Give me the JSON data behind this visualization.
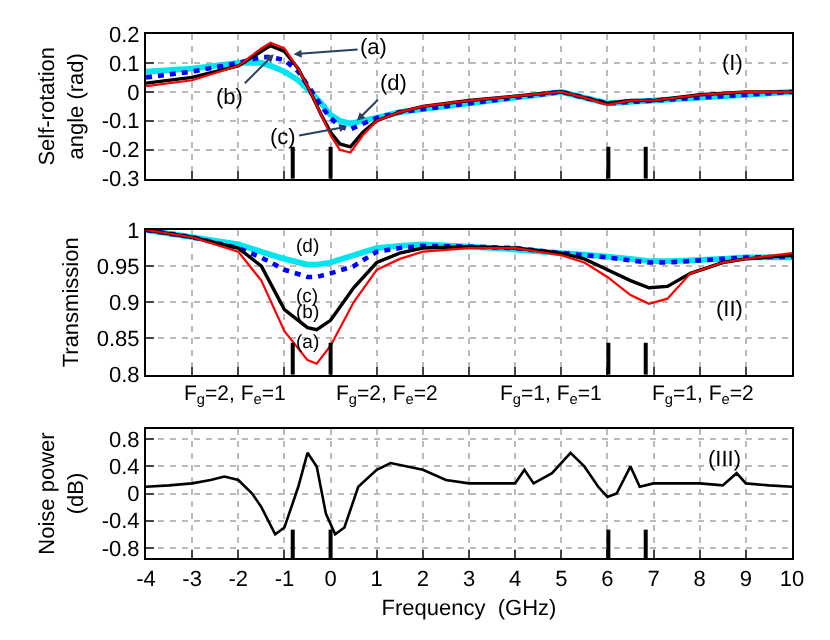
{
  "chart_data": [
    {
      "type": "line",
      "ylabel": "Self-rotation angle (rad)",
      "xlim": [
        -4,
        10
      ],
      "xticks": [
        -4,
        -3,
        -2,
        -1,
        0,
        1,
        2,
        3,
        4,
        5,
        6,
        7,
        8,
        9,
        10
      ],
      "ylim": [
        -0.3,
        0.2
      ],
      "yticks": [
        -0.3,
        -0.2,
        -0.1,
        0,
        0.1,
        0.2
      ],
      "grid": true,
      "tick_labels": "y",
      "marker": "none",
      "x": [
        -4,
        -3,
        -2,
        -1.5,
        -1.3,
        -1,
        -0.7,
        -0.44,
        -0.2,
        0,
        0.2,
        0.43,
        0.7,
        1,
        1.5,
        2,
        3,
        4,
        5,
        5.5,
        6,
        6.5,
        7,
        8,
        9,
        10
      ],
      "series": [
        {
          "color": "#ff0000",
          "line_style": "solid",
          "values": [
            0.02,
            0.04,
            0.09,
            0.15,
            0.17,
            0.15,
            0.08,
            0,
            -0.08,
            -0.15,
            -0.2,
            -0.21,
            -0.15,
            -0.1,
            -0.07,
            -0.05,
            -0.03,
            -0.015,
            0,
            -0.02,
            -0.045,
            -0.03,
            -0.03,
            -0.01,
            0,
            0
          ]
        },
        {
          "color": "#000000",
          "line_style": "solid",
          "values": [
            0.03,
            0.05,
            0.09,
            0.14,
            0.16,
            0.14,
            0.08,
            0,
            -0.08,
            -0.14,
            -0.18,
            -0.19,
            -0.14,
            -0.1,
            -0.07,
            -0.05,
            -0.03,
            -0.015,
            0,
            -0.02,
            -0.04,
            -0.03,
            -0.03,
            -0.01,
            0,
            0
          ]
        },
        {
          "color": "#0000ff",
          "line_style": "dotted",
          "values": [
            0.05,
            0.07,
            0.1,
            0.12,
            0.12,
            0.11,
            0.07,
            0.01,
            -0.05,
            -0.09,
            -0.12,
            -0.13,
            -0.11,
            -0.09,
            -0.07,
            -0.06,
            -0.04,
            -0.02,
            0,
            -0.02,
            -0.04,
            -0.035,
            -0.03,
            -0.02,
            -0.01,
            0
          ]
        },
        {
          "color": "#00e5ee",
          "line_style": "solid",
          "values": [
            0.07,
            0.08,
            0.1,
            0.1,
            0.09,
            0.07,
            0.04,
            0,
            -0.04,
            -0.08,
            -0.1,
            -0.11,
            -0.1,
            -0.09,
            -0.07,
            -0.06,
            -0.04,
            -0.02,
            0,
            -0.02,
            -0.04,
            -0.035,
            -0.03,
            -0.02,
            -0.01,
            0
          ]
        }
      ],
      "annotations": [
        "(I)",
        {
          "text": "(a)",
          "x": -0.8,
          "y": 0.13
        },
        {
          "text": "(b)",
          "x": -1.23,
          "y": 0.13
        },
        {
          "text": "(c)",
          "x": 0.36,
          "y": -0.12
        },
        {
          "text": "(d)",
          "x": 0.57,
          "y": -0.1
        }
      ],
      "ref_lines": [
        {
          "axis": "x",
          "value": -0.82,
          "color": "#000000"
        },
        {
          "axis": "x",
          "value": 0,
          "color": "#000000"
        },
        {
          "axis": "x",
          "value": 6.02,
          "color": "#000000"
        },
        {
          "axis": "x",
          "value": 6.83,
          "color": "#000000"
        }
      ]
    },
    {
      "type": "line",
      "ylabel": "Transmission",
      "xlim": [
        -4,
        10
      ],
      "xticks": [
        -4,
        -3,
        -2,
        -1,
        0,
        1,
        2,
        3,
        4,
        5,
        6,
        7,
        8,
        9,
        10
      ],
      "ylim": [
        0.8,
        1
      ],
      "yticks": [
        0.8,
        0.85,
        0.9,
        0.95,
        1
      ],
      "grid": true,
      "tick_labels": "y",
      "marker": "none",
      "x": [
        -4,
        -3,
        -2,
        -1.5,
        -1,
        -0.5,
        -0.3,
        0,
        0.5,
        1,
        1.5,
        2,
        3,
        4,
        5,
        5.5,
        6,
        6.5,
        6.9,
        7.3,
        7.8,
        8.5,
        9,
        10
      ],
      "series": [
        {
          "color": "#ff0000",
          "line_style": "solid",
          "values": [
            1,
            0.99,
            0.97,
            0.93,
            0.86,
            0.82,
            0.815,
            0.84,
            0.9,
            0.945,
            0.96,
            0.97,
            0.975,
            0.975,
            0.965,
            0.955,
            0.935,
            0.91,
            0.898,
            0.905,
            0.94,
            0.955,
            0.96,
            0.968
          ]
        },
        {
          "color": "#000000",
          "line_style": "solid",
          "values": [
            1,
            0.99,
            0.975,
            0.95,
            0.89,
            0.865,
            0.862,
            0.875,
            0.92,
            0.955,
            0.968,
            0.975,
            0.977,
            0.975,
            0.968,
            0.96,
            0.945,
            0.93,
            0.92,
            0.922,
            0.94,
            0.955,
            0.96,
            0.965
          ]
        },
        {
          "color": "#0000ff",
          "line_style": "dotted",
          "values": [
            1,
            0.99,
            0.975,
            0.962,
            0.945,
            0.935,
            0.935,
            0.94,
            0.95,
            0.97,
            0.975,
            0.978,
            0.977,
            0.975,
            0.968,
            0.965,
            0.962,
            0.958,
            0.955,
            0.955,
            0.957,
            0.96,
            0.962,
            0.963
          ]
        },
        {
          "color": "#00e5ee",
          "line_style": "solid",
          "values": [
            1,
            0.99,
            0.98,
            0.97,
            0.96,
            0.952,
            0.952,
            0.955,
            0.965,
            0.975,
            0.978,
            0.98,
            0.977,
            0.973,
            0.968,
            0.966,
            0.963,
            0.96,
            0.957,
            0.957,
            0.958,
            0.96,
            0.962,
            0.962
          ]
        }
      ],
      "annotations": [
        "(II)",
        {
          "text": "(a)",
          "x": -0.5,
          "y": 0.82
        },
        {
          "text": "(b)",
          "x": -0.5,
          "y": 0.865
        },
        {
          "text": "(c)",
          "x": -0.5,
          "y": 0.935
        },
        {
          "text": "(d)",
          "x": -0.5,
          "y": 0.952
        },
        {
          "text": "F$_{g}$=2, F$_{e}$=1",
          "x": -0.82,
          "y": 0.8
        },
        {
          "text": "F$_{g}$=2, F$_{e}$=2",
          "x": 0,
          "y": 0.8
        },
        {
          "text": "F$_{g}$=1, F$_{e}$=1",
          "x": 6.02,
          "y": 0.8
        },
        {
          "text": "F$_{g}$=1, F$_{e}$=2",
          "x": 6.83,
          "y": 0.8
        }
      ],
      "ref_lines": [
        {
          "axis": "x",
          "value": -0.82,
          "color": "#000000"
        },
        {
          "axis": "x",
          "value": 0,
          "color": "#000000"
        },
        {
          "axis": "x",
          "value": 6.02,
          "color": "#000000"
        },
        {
          "axis": "x",
          "value": 6.83,
          "color": "#000000"
        }
      ]
    },
    {
      "type": "line",
      "xlabel": "Frequency  (GHz)",
      "ylabel": "Noise power (dB)",
      "xlim": [
        -4,
        10
      ],
      "xticks": [
        -4,
        -3,
        -2,
        -1,
        0,
        1,
        2,
        3,
        4,
        5,
        6,
        7,
        8,
        9,
        10
      ],
      "ylim": [
        -0.95,
        0.95
      ],
      "yticks": [
        -0.8,
        -0.4,
        0,
        0.4,
        0.8
      ],
      "grid": true,
      "marker": "none",
      "x": [
        -4,
        -3.5,
        -3,
        -2.6,
        -2.3,
        -2,
        -1.7,
        -1.5,
        -1.2,
        -1,
        -0.85,
        -0.7,
        -0.5,
        -0.3,
        -0.1,
        0.1,
        0.3,
        0.6,
        1,
        1.3,
        2,
        2.5,
        3,
        3.5,
        4,
        4.2,
        4.4,
        4.8,
        5.2,
        5.5,
        5.8,
        6,
        6.2,
        6.5,
        6.7,
        7,
        7.5,
        8,
        8.5,
        8.8,
        9,
        9.5,
        10
      ],
      "series": [
        {
          "color": "#000000",
          "line_style": "solid",
          "values": [
            0.1,
            0.12,
            0.15,
            0.2,
            0.25,
            0.2,
            0,
            -0.2,
            -0.6,
            -0.5,
            -0.2,
            0.1,
            0.6,
            0.4,
            -0.3,
            -0.6,
            -0.5,
            0.1,
            0.35,
            0.45,
            0.35,
            0.2,
            0.15,
            0.15,
            0.15,
            0.35,
            0.15,
            0.3,
            0.6,
            0.4,
            0.1,
            -0.05,
            0,
            0.4,
            0.1,
            0.15,
            0.15,
            0.15,
            0.12,
            0.3,
            0.15,
            0.12,
            0.1
          ]
        }
      ],
      "annotations": [
        "(III)"
      ],
      "ref_lines": [
        {
          "axis": "x",
          "value": -0.82,
          "color": "#000000"
        },
        {
          "axis": "x",
          "value": 0,
          "color": "#000000"
        },
        {
          "axis": "x",
          "value": 6.02,
          "color": "#000000"
        },
        {
          "axis": "x",
          "value": 6.83,
          "color": "#000000"
        }
      ]
    }
  ]
}
